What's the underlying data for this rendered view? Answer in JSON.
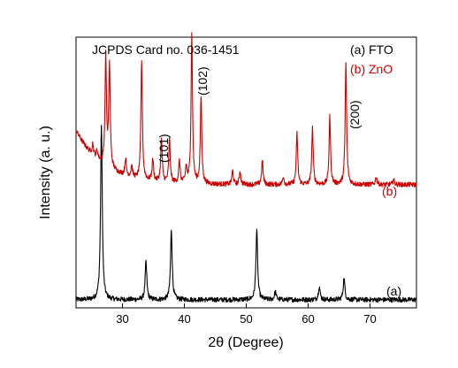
{
  "chart_data": {
    "type": "line",
    "title": "",
    "xlabel": "2θ (Degree)",
    "ylabel": "Intensity (a. u.)",
    "xlim": [
      22.5,
      77.5
    ],
    "ylim": [
      0,
      100
    ],
    "x_ticks": [
      30,
      40,
      50,
      60,
      70
    ],
    "x_tick_labels": [
      "30",
      "40",
      "50",
      "60",
      "70"
    ],
    "grid": false,
    "legend_position": "top-right",
    "legend": [
      {
        "label": "(a) FTO",
        "color": "#000000"
      },
      {
        "label": "(b) ZnO",
        "color": "#cc0000"
      }
    ],
    "annotations": {
      "card": "JCPDS Card no. 036-1451",
      "peaks": [
        {
          "label": "(101)",
          "x": 36.3
        },
        {
          "label": "(102)",
          "x": 41.4
        },
        {
          "label": "(200)",
          "x": 66.0
        }
      ],
      "curve_labels": [
        {
          "label": "(b)",
          "series": "b"
        },
        {
          "label": "(a)",
          "series": "a"
        }
      ]
    },
    "series": [
      {
        "name": "(a) FTO",
        "color": "#000000",
        "baseline": 3,
        "noise": 0.9,
        "peaks": [
          {
            "x": 26.6,
            "h": 65,
            "w": 0.16
          },
          {
            "x": 33.8,
            "h": 14,
            "w": 0.16
          },
          {
            "x": 37.9,
            "h": 26,
            "w": 0.16
          },
          {
            "x": 51.7,
            "h": 26,
            "w": 0.16
          },
          {
            "x": 54.7,
            "h": 3,
            "w": 0.16
          },
          {
            "x": 61.8,
            "h": 5,
            "w": 0.16
          },
          {
            "x": 65.8,
            "h": 8,
            "w": 0.16
          }
        ]
      },
      {
        "name": "(b) ZnO",
        "color": "#cc0000",
        "baseline": 45.5,
        "baseline_rise": 20,
        "baseline_decay": 4.5,
        "noise": 0.9,
        "peaks": [
          {
            "x": 25.2,
            "h": 4,
            "w": 0.14
          },
          {
            "x": 25.9,
            "h": 3,
            "w": 0.14
          },
          {
            "x": 27.3,
            "h": 40,
            "w": 0.14
          },
          {
            "x": 27.9,
            "h": 38,
            "w": 0.14
          },
          {
            "x": 30.5,
            "h": 6,
            "w": 0.14
          },
          {
            "x": 31.5,
            "h": 4,
            "w": 0.14
          },
          {
            "x": 33.1,
            "h": 44,
            "w": 0.14
          },
          {
            "x": 34.9,
            "h": 8,
            "w": 0.14
          },
          {
            "x": 36.3,
            "h": 16,
            "w": 0.14
          },
          {
            "x": 37.6,
            "h": 16,
            "w": 0.14
          },
          {
            "x": 39.2,
            "h": 8,
            "w": 0.14
          },
          {
            "x": 40.3,
            "h": 6,
            "w": 0.14
          },
          {
            "x": 41.2,
            "h": 55,
            "w": 0.14
          },
          {
            "x": 42.7,
            "h": 32,
            "w": 0.14
          },
          {
            "x": 47.8,
            "h": 5,
            "w": 0.14
          },
          {
            "x": 49.0,
            "h": 5,
            "w": 0.14
          },
          {
            "x": 52.6,
            "h": 9,
            "w": 0.14
          },
          {
            "x": 56.0,
            "h": 3,
            "w": 0.14
          },
          {
            "x": 58.2,
            "h": 19,
            "w": 0.14
          },
          {
            "x": 60.7,
            "h": 21,
            "w": 0.14
          },
          {
            "x": 63.5,
            "h": 25,
            "w": 0.14
          },
          {
            "x": 66.1,
            "h": 45,
            "w": 0.14
          },
          {
            "x": 71.0,
            "h": 3,
            "w": 0.14
          },
          {
            "x": 73.8,
            "h": 2,
            "w": 0.14
          }
        ]
      }
    ]
  }
}
